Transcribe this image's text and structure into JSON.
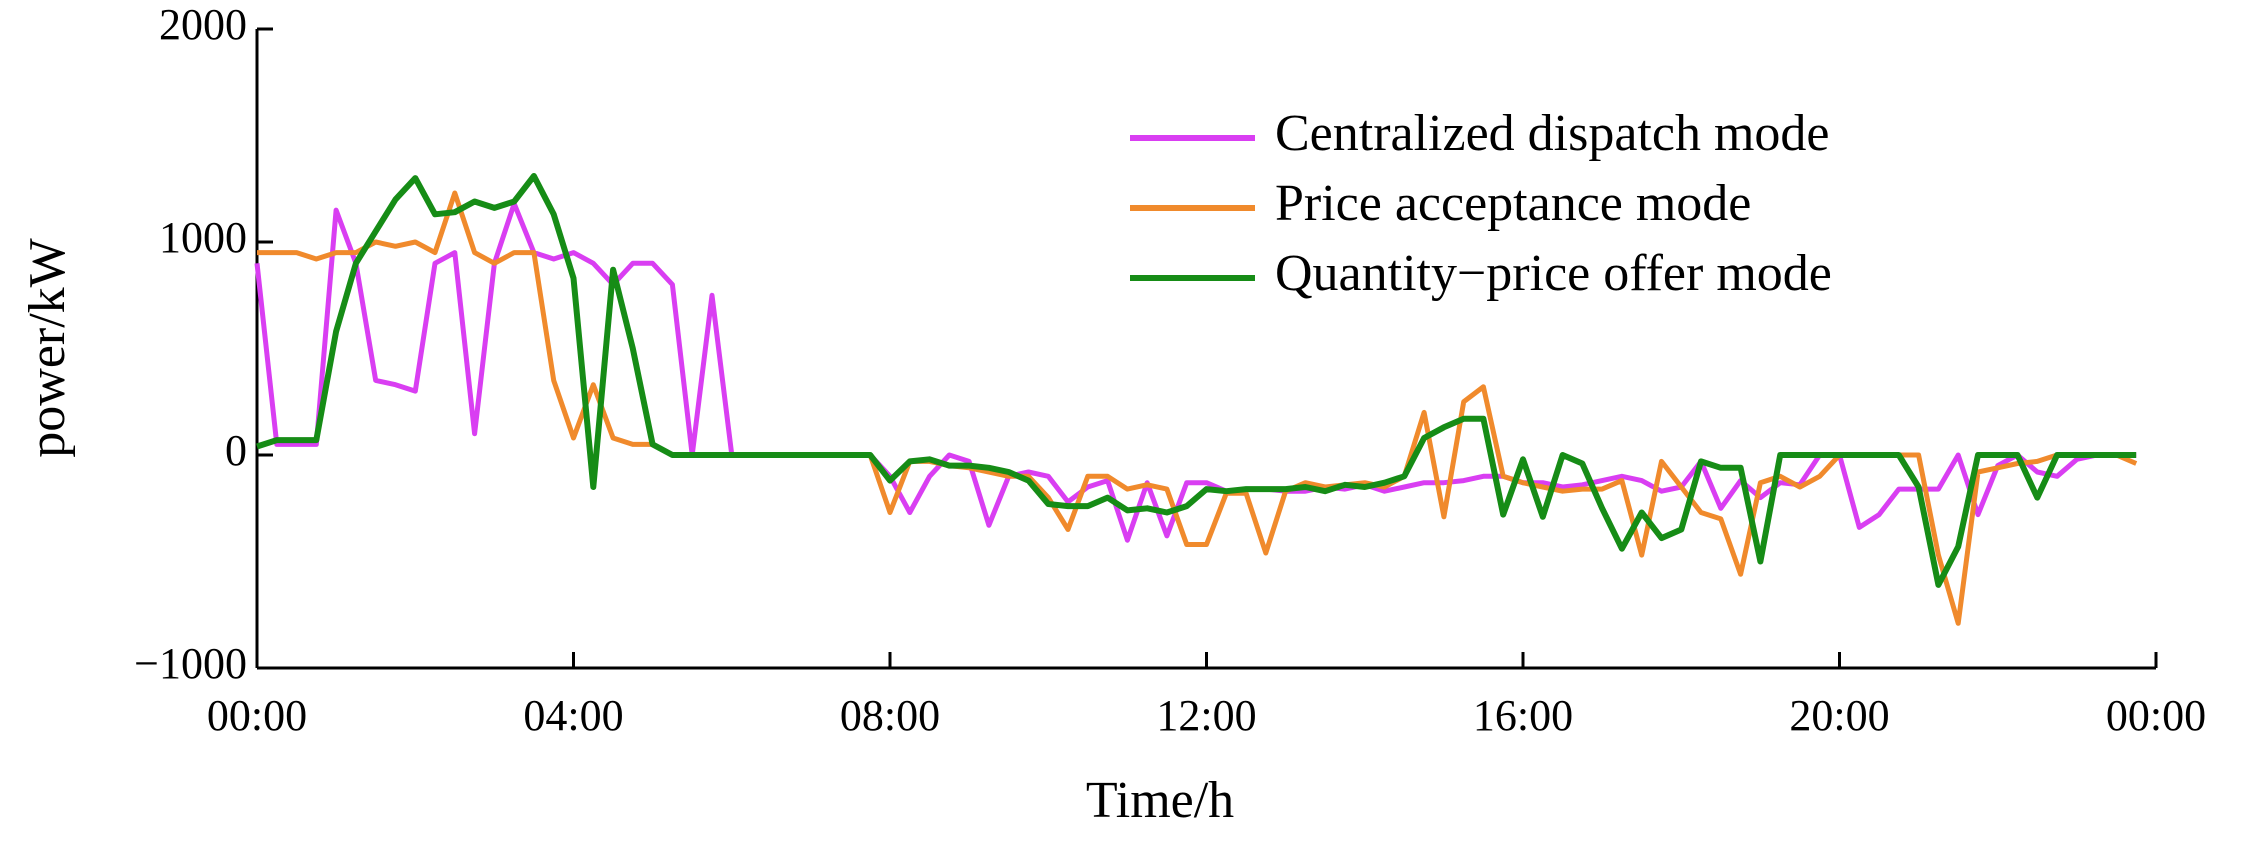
{
  "chart_data": {
    "type": "line",
    "x_label": "Time/h",
    "y_label": "power/kW",
    "x": [
      0,
      0.25,
      0.5,
      0.75,
      1,
      1.25,
      1.5,
      1.75,
      2,
      2.25,
      2.5,
      2.75,
      3,
      3.25,
      3.5,
      3.75,
      4,
      4.25,
      4.5,
      4.75,
      5,
      5.25,
      5.5,
      5.75,
      6,
      6.25,
      6.5,
      6.75,
      7,
      7.25,
      7.5,
      7.75,
      8,
      8.25,
      8.5,
      8.75,
      9,
      9.25,
      9.5,
      9.75,
      10,
      10.25,
      10.5,
      10.75,
      11,
      11.25,
      11.5,
      11.75,
      12,
      12.25,
      12.5,
      12.75,
      13,
      13.25,
      13.5,
      13.75,
      14,
      14.25,
      14.5,
      14.75,
      15,
      15.25,
      15.5,
      15.75,
      16,
      16.25,
      16.5,
      16.75,
      17,
      17.25,
      17.5,
      17.75,
      18,
      18.25,
      18.5,
      18.75,
      19,
      19.25,
      19.5,
      19.75,
      20,
      20.25,
      20.5,
      20.75,
      21,
      21.25,
      21.5,
      21.75,
      22,
      22.25,
      22.5,
      22.75,
      23,
      23.25,
      23.5,
      23.75
    ],
    "series": [
      {
        "name": "Centralized dispatch mode",
        "color": "#d93ef2",
        "values": [
          900,
          50,
          50,
          50,
          1150,
          900,
          350,
          330,
          300,
          900,
          950,
          100,
          900,
          1180,
          950,
          920,
          950,
          900,
          800,
          900,
          900,
          800,
          0,
          750,
          0,
          0,
          0,
          0,
          0,
          0,
          0,
          0,
          -100,
          -270,
          -100,
          0,
          -30,
          -330,
          -100,
          -80,
          -100,
          -220,
          -150,
          -120,
          -400,
          -130,
          -380,
          -130,
          -130,
          -170,
          -160,
          -160,
          -170,
          -170,
          -150,
          -160,
          -140,
          -170,
          -150,
          -130,
          -130,
          -120,
          -100,
          -100,
          -130,
          -130,
          -150,
          -140,
          -120,
          -100,
          -120,
          -170,
          -150,
          -30,
          -250,
          -120,
          -200,
          -130,
          -140,
          0,
          0,
          -340,
          -280,
          -160,
          -160,
          -160,
          0,
          -280,
          -50,
          0,
          -80,
          -100,
          -20,
          0,
          0,
          0
        ]
      },
      {
        "name": "Price acceptance mode",
        "color": "#f08a2c",
        "values": [
          950,
          950,
          950,
          920,
          950,
          950,
          1000,
          980,
          1000,
          950,
          1230,
          950,
          900,
          950,
          950,
          350,
          80,
          330,
          80,
          50,
          50,
          0,
          0,
          0,
          0,
          0,
          0,
          0,
          0,
          0,
          0,
          0,
          -270,
          -30,
          -30,
          -50,
          -60,
          -80,
          -100,
          -100,
          -200,
          -350,
          -100,
          -100,
          -160,
          -140,
          -160,
          -420,
          -420,
          -180,
          -180,
          -460,
          -170,
          -130,
          -150,
          -140,
          -130,
          -150,
          -100,
          200,
          -290,
          250,
          320,
          -100,
          -130,
          -150,
          -170,
          -160,
          -160,
          -120,
          -470,
          -30,
          -150,
          -270,
          -300,
          -560,
          -130,
          -100,
          -150,
          -100,
          0,
          0,
          0,
          0,
          0,
          -470,
          -790,
          -80,
          -60,
          -40,
          -30,
          0,
          0,
          0,
          0,
          -40
        ]
      },
      {
        "name": "Quantity−price offer mode",
        "color": "#168c16",
        "values": [
          40,
          70,
          70,
          70,
          580,
          900,
          1050,
          1200,
          1300,
          1130,
          1140,
          1190,
          1160,
          1190,
          1310,
          1130,
          830,
          -150,
          870,
          500,
          50,
          0,
          0,
          0,
          0,
          0,
          0,
          0,
          0,
          0,
          0,
          0,
          -120,
          -30,
          -20,
          -50,
          -50,
          -60,
          -80,
          -120,
          -230,
          -240,
          -240,
          -200,
          -260,
          -250,
          -270,
          -240,
          -160,
          -170,
          -160,
          -160,
          -160,
          -150,
          -170,
          -140,
          -150,
          -130,
          -100,
          80,
          130,
          170,
          170,
          -280,
          -20,
          -290,
          0,
          -40,
          -250,
          -440,
          -270,
          -390,
          -350,
          -30,
          -60,
          -60,
          -500,
          0,
          0,
          0,
          0,
          0,
          0,
          0,
          -150,
          -610,
          -430,
          0,
          0,
          0,
          -200,
          0,
          0,
          0,
          0,
          0
        ]
      }
    ],
    "xlim": [
      0,
      24
    ],
    "xticks": [
      {
        "value": 0,
        "label": "00:00"
      },
      {
        "value": 4,
        "label": "04:00"
      },
      {
        "value": 8,
        "label": "08:00"
      },
      {
        "value": 12,
        "label": "12:00"
      },
      {
        "value": 16,
        "label": "16:00"
      },
      {
        "value": 20,
        "label": "20:00"
      },
      {
        "value": 24,
        "label": "00:00"
      }
    ],
    "ylim": [
      -1000,
      2000
    ],
    "yticks": [
      {
        "value": -1000,
        "label": "−1000"
      },
      0,
      1000,
      2000
    ],
    "grid": false,
    "legend": "upper right"
  }
}
